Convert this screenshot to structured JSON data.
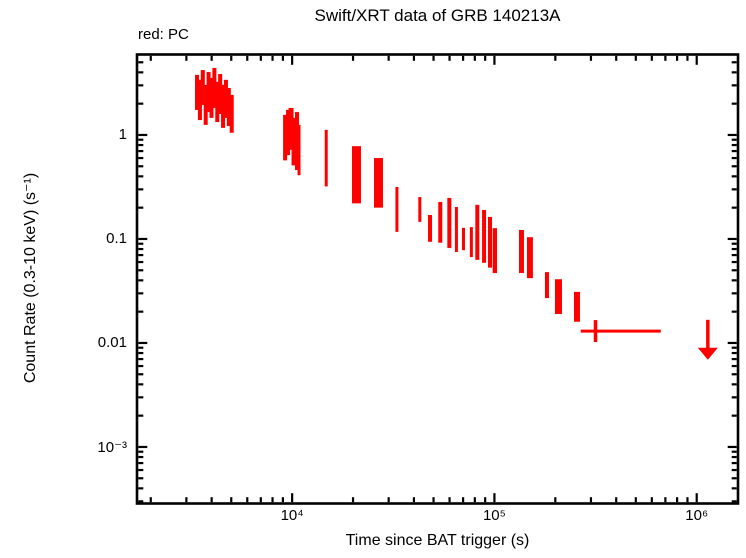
{
  "header": {
    "mode_label": "red: PC"
  },
  "chart_data": {
    "type": "scatter",
    "title": "Swift/XRT data of GRB 140213A",
    "xlabel": "Time since BAT trigger (s)",
    "ylabel": "Count Rate (0.3-10 keV) (s⁻¹)",
    "x_scale": "log",
    "y_scale": "log",
    "xlim": [
      1710,
      1600000
    ],
    "ylim": [
      0.000286,
      5.94
    ],
    "grid": false,
    "x_ticks": [
      {
        "value": 10000,
        "label": "10⁴"
      },
      {
        "value": 100000,
        "label": "10⁵"
      },
      {
        "value": 1000000,
        "label": "10⁶"
      }
    ],
    "y_ticks": [
      {
        "value": 1,
        "label": "1"
      },
      {
        "value": 0.1,
        "label": "0.1"
      },
      {
        "value": 0.01,
        "label": "0.01"
      },
      {
        "value": 0.001,
        "label": "10⁻³"
      }
    ],
    "points_format": "[t_start_s, t_end_s, rate_lo, rate_hi]",
    "series": [
      {
        "name": "PC",
        "color": "#ff0000",
        "points": [
          [
            3310,
            3464,
            1.74,
            3.78
          ],
          [
            3421,
            3581,
            1.39,
            3.39
          ],
          [
            3535,
            3701,
            1.94,
            4.21
          ],
          [
            3654,
            3824,
            1.25,
            3.03
          ],
          [
            3776,
            3952,
            1.66,
            4.03
          ],
          [
            3902,
            4084,
            1.46,
            3.54
          ],
          [
            4033,
            4221,
            1.82,
            4.41
          ],
          [
            4168,
            4363,
            1.33,
            3.24
          ],
          [
            4308,
            4509,
            1.59,
            3.86
          ],
          [
            4451,
            4659,
            1.17,
            3.03
          ],
          [
            4601,
            4816,
            1.46,
            3.39
          ],
          [
            4754,
            4976,
            1.22,
            2.83
          ],
          [
            4913,
            5143,
            1.05,
            2.43
          ],
          [
            9021,
            9442,
            0.57,
            1.56
          ],
          [
            9331,
            9767,
            0.64,
            1.74
          ],
          [
            9600,
            10162,
            0.72,
            1.82
          ],
          [
            9931,
            10513,
            0.51,
            1.46
          ],
          [
            10332,
            10815,
            0.46,
            1.66
          ],
          [
            10630,
            10999,
            0.41,
            1.25
          ],
          [
            14488,
            14990,
            0.32,
            1.12
          ],
          [
            19760,
            21890,
            0.22,
            0.78
          ],
          [
            25390,
            28120,
            0.2,
            0.6
          ],
          [
            32400,
            33530,
            0.117,
            0.316
          ],
          [
            42040,
            43500,
            0.146,
            0.253
          ],
          [
            46960,
            49160,
            0.094,
            0.17
          ],
          [
            52760,
            55230,
            0.092,
            0.227
          ],
          [
            58500,
            61240,
            0.082,
            0.248
          ],
          [
            63780,
            65990,
            0.075,
            0.203
          ],
          [
            69120,
            71520,
            0.078,
            0.128
          ],
          [
            75610,
            78230,
            0.067,
            0.13
          ],
          [
            80430,
            84190,
            0.063,
            0.213
          ],
          [
            86860,
            90920,
            0.059,
            0.19
          ],
          [
            92940,
            97290,
            0.053,
            0.163
          ],
          [
            98000,
            103000,
            0.047,
            0.127
          ],
          [
            132250,
            139970,
            0.047,
            0.122
          ],
          [
            144800,
            155000,
            0.042,
            0.104
          ],
          [
            177750,
            186050,
            0.027,
            0.048
          ],
          [
            199200,
            215700,
            0.019,
            0.041
          ],
          [
            247300,
            264800,
            0.016,
            0.031
          ]
        ]
      }
    ],
    "cross_point": {
      "t": 316000,
      "t_lo": 267000,
      "t_hi": 664000,
      "rate": 0.013,
      "rate_lo": 0.0102,
      "rate_hi": 0.0166
    },
    "upper_limit": {
      "t": 1135000,
      "rate": 0.0167,
      "arrow_tip_rate": 0.0069
    }
  }
}
